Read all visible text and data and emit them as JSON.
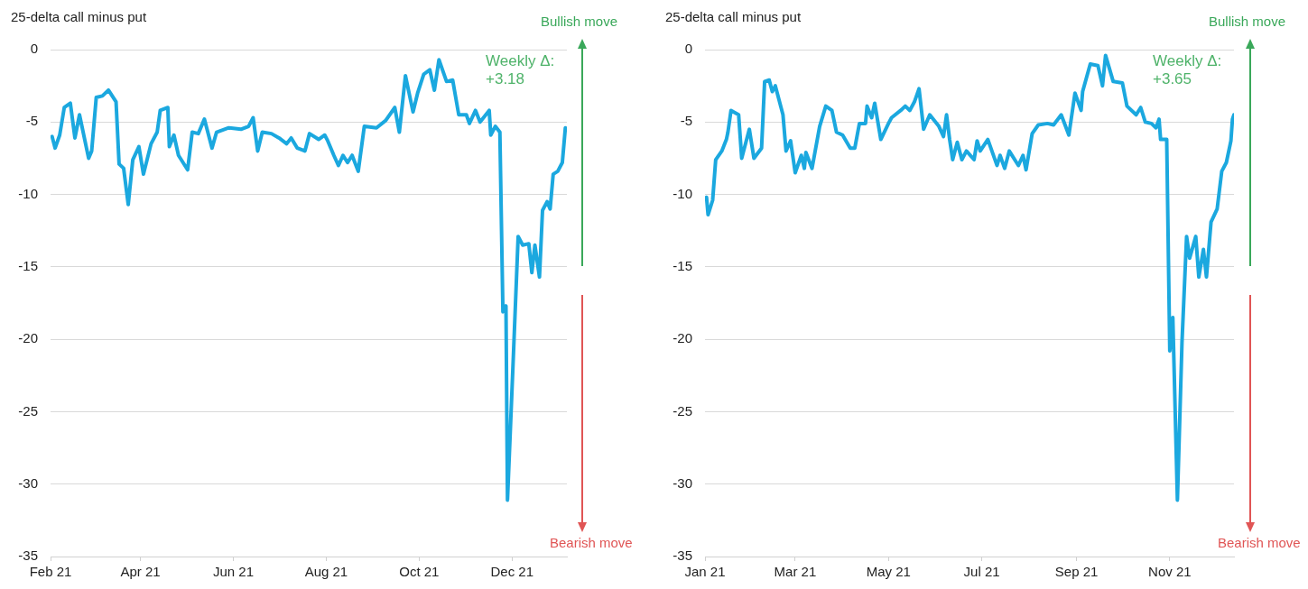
{
  "chart_data": [
    {
      "type": "line",
      "ylabel": "25-delta call minus put",
      "annotations": [
        "Bullish move",
        "Weekly Δ: +3.18",
        "Bearish move"
      ],
      "xlim": [
        "2021-02-01",
        "2022-01-06"
      ],
      "ylim": [
        -35,
        0
      ],
      "yticks": [
        -35,
        -30,
        -25,
        -20,
        -15,
        -10,
        -5,
        0
      ],
      "xticks": [
        {
          "value": "2021-02-01",
          "label": "Feb 21"
        },
        {
          "value": "2021-04-01",
          "label": "Apr 21"
        },
        {
          "value": "2021-06-01",
          "label": "Jun 21"
        },
        {
          "value": "2021-08-01",
          "label": "Aug 21"
        },
        {
          "value": "2021-10-01",
          "label": "Oct 21"
        },
        {
          "value": "2021-12-01",
          "label": "Dec 21"
        }
      ],
      "grid": "y",
      "marker": "none",
      "line_style": "solid",
      "series": [
        {
          "color": "#1ba8df",
          "x": [
            "2021-02-02",
            "2021-02-04",
            "2021-02-07",
            "2021-02-10",
            "2021-02-14",
            "2021-02-17",
            "2021-02-20",
            "2021-02-26",
            "2021-02-28",
            "2021-03-03",
            "2021-03-07",
            "2021-03-11",
            "2021-03-16",
            "2021-03-18",
            "2021-03-21",
            "2021-03-24",
            "2021-03-27",
            "2021-03-31",
            "2021-04-03",
            "2021-04-08",
            "2021-04-12",
            "2021-04-14",
            "2021-04-19",
            "2021-04-20",
            "2021-04-23",
            "2021-04-26",
            "2021-05-02",
            "2021-05-05",
            "2021-05-09",
            "2021-05-13",
            "2021-05-18",
            "2021-05-21",
            "2021-05-29",
            "2021-06-06",
            "2021-06-11",
            "2021-06-14",
            "2021-06-17",
            "2021-06-20",
            "2021-06-26",
            "2021-07-01",
            "2021-07-06",
            "2021-07-09",
            "2021-07-13",
            "2021-07-18",
            "2021-07-21",
            "2021-07-27",
            "2021-07-31",
            "2021-08-02",
            "2021-08-06",
            "2021-08-09",
            "2021-08-12",
            "2021-08-15",
            "2021-08-18",
            "2021-08-22",
            "2021-08-26",
            "2021-09-03",
            "2021-09-09",
            "2021-09-15",
            "2021-09-18",
            "2021-09-22",
            "2021-09-27",
            "2021-09-30",
            "2021-10-04",
            "2021-10-08",
            "2021-10-11",
            "2021-10-14",
            "2021-10-19",
            "2021-10-23",
            "2021-10-27",
            "2021-11-01",
            "2021-11-03",
            "2021-11-07",
            "2021-11-10",
            "2021-11-16",
            "2021-11-17",
            "2021-11-20",
            "2021-11-23",
            "2021-11-25",
            "2021-11-27",
            "2021-11-28",
            "2021-12-02",
            "2021-12-05",
            "2021-12-08",
            "2021-12-12",
            "2021-12-14",
            "2021-12-16",
            "2021-12-19",
            "2021-12-21",
            "2021-12-24",
            "2021-12-26",
            "2021-12-28",
            "2021-12-31",
            "2022-01-03",
            "2022-01-05",
            "2022-01-06"
          ],
          "values": [
            -6.0,
            -6.8,
            -5.9,
            -4.0,
            -3.7,
            -6.1,
            -4.5,
            -7.5,
            -7.0,
            -3.3,
            -3.2,
            -2.8,
            -3.6,
            -7.9,
            -8.2,
            -10.7,
            -7.6,
            -6.7,
            -8.6,
            -6.5,
            -5.7,
            -4.2,
            -4.0,
            -6.7,
            -5.9,
            -7.3,
            -8.3,
            -5.7,
            -5.8,
            -4.8,
            -6.8,
            -5.7,
            -5.4,
            -5.5,
            -5.3,
            -4.7,
            -7.0,
            -5.7,
            -5.8,
            -6.1,
            -6.5,
            -6.1,
            -6.8,
            -7.0,
            -5.8,
            -6.2,
            -5.9,
            -6.3,
            -7.3,
            -8.0,
            -7.3,
            -7.8,
            -7.3,
            -8.4,
            -5.3,
            -5.4,
            -4.9,
            -4.0,
            -5.7,
            -1.8,
            -4.3,
            -3.0,
            -1.7,
            -1.4,
            -2.8,
            -0.7,
            -2.2,
            -2.1,
            -4.5,
            -4.5,
            -5.1,
            -4.2,
            -5.0,
            -4.2,
            -5.9,
            -5.3,
            -5.7,
            -18.1,
            -17.7,
            -31.1,
            -20.8,
            -12.9,
            -13.5,
            -13.4,
            -15.4,
            -13.5,
            -15.7,
            -11.1,
            -10.5,
            -11.0,
            -8.6,
            -8.4,
            -7.8,
            -5.4,
            -5.5
          ]
        }
      ]
    },
    {
      "type": "line",
      "ylabel": "25-delta call minus put",
      "annotations": [
        "Bullish move",
        "Weekly Δ: +3.65",
        "Bearish move"
      ],
      "xlim": [
        "2021-01-01",
        "2021-12-13"
      ],
      "ylim": [
        -35,
        0
      ],
      "yticks": [
        -35,
        -30,
        -25,
        -20,
        -15,
        -10,
        -5,
        0
      ],
      "xticks": [
        {
          "value": "2021-01-01",
          "label": "Jan 21"
        },
        {
          "value": "2021-03-01",
          "label": "Mar 21"
        },
        {
          "value": "2021-05-01",
          "label": "May 21"
        },
        {
          "value": "2021-07-01",
          "label": "Jul 21"
        },
        {
          "value": "2021-09-01",
          "label": "Sep 21"
        },
        {
          "value": "2021-11-01",
          "label": "Nov 21"
        }
      ],
      "grid": "y",
      "marker": "none",
      "line_style": "solid",
      "series": [
        {
          "color": "#1ba8df",
          "x": [
            "2021-01-02",
            "2021-01-03",
            "2021-01-06",
            "2021-01-08",
            "2021-01-12",
            "2021-01-15",
            "2021-01-16",
            "2021-01-18",
            "2021-01-23",
            "2021-01-25",
            "2021-01-30",
            "2021-02-02",
            "2021-02-07",
            "2021-02-09",
            "2021-02-12",
            "2021-02-14",
            "2021-02-16",
            "2021-02-21",
            "2021-02-23",
            "2021-02-26",
            "2021-03-01",
            "2021-03-05",
            "2021-03-07",
            "2021-03-08",
            "2021-03-12",
            "2021-03-17",
            "2021-03-21",
            "2021-03-25",
            "2021-03-28",
            "2021-04-01",
            "2021-04-06",
            "2021-04-09",
            "2021-04-12",
            "2021-04-16",
            "2021-04-17",
            "2021-04-20",
            "2021-04-22",
            "2021-04-26",
            "2021-05-01",
            "2021-05-03",
            "2021-05-09",
            "2021-05-12",
            "2021-05-15",
            "2021-05-18",
            "2021-05-21",
            "2021-05-24",
            "2021-05-28",
            "2021-06-03",
            "2021-06-06",
            "2021-06-08",
            "2021-06-10",
            "2021-06-12",
            "2021-06-15",
            "2021-06-18",
            "2021-06-21",
            "2021-06-26",
            "2021-06-28",
            "2021-06-30",
            "2021-07-05",
            "2021-07-11",
            "2021-07-13",
            "2021-07-16",
            "2021-07-19",
            "2021-07-25",
            "2021-07-28",
            "2021-07-30",
            "2021-08-03",
            "2021-08-07",
            "2021-08-13",
            "2021-08-17",
            "2021-08-22",
            "2021-08-27",
            "2021-08-31",
            "2021-09-04",
            "2021-09-05",
            "2021-09-10",
            "2021-09-15",
            "2021-09-18",
            "2021-09-20",
            "2021-09-25",
            "2021-10-01",
            "2021-10-04",
            "2021-10-10",
            "2021-10-13",
            "2021-10-16",
            "2021-10-20",
            "2021-10-23",
            "2021-10-25",
            "2021-10-26",
            "2021-10-30",
            "2021-11-01",
            "2021-11-03",
            "2021-11-06",
            "2021-11-09",
            "2021-11-12",
            "2021-11-14",
            "2021-11-18",
            "2021-11-20",
            "2021-11-23",
            "2021-11-25",
            "2021-11-28",
            "2021-12-02",
            "2021-12-05",
            "2021-12-08",
            "2021-12-11",
            "2021-12-12",
            "2021-12-13"
          ],
          "values": [
            -10.2,
            -11.4,
            -10.4,
            -7.6,
            -7.0,
            -6.2,
            -5.7,
            -4.2,
            -4.5,
            -7.5,
            -5.5,
            -7.5,
            -6.8,
            -2.2,
            -2.1,
            -2.9,
            -2.5,
            -4.5,
            -7.0,
            -6.3,
            -8.5,
            -7.3,
            -8.2,
            -7.1,
            -8.2,
            -5.3,
            -3.9,
            -4.2,
            -5.7,
            -5.9,
            -6.8,
            -6.8,
            -5.1,
            -5.1,
            -3.9,
            -4.7,
            -3.7,
            -6.2,
            -5.1,
            -4.7,
            -4.2,
            -3.9,
            -4.2,
            -3.6,
            -2.7,
            -5.5,
            -4.5,
            -5.3,
            -6.0,
            -4.5,
            -6.2,
            -7.6,
            -6.4,
            -7.6,
            -7.0,
            -7.6,
            -6.3,
            -7.0,
            -6.2,
            -8.0,
            -7.3,
            -8.2,
            -7.0,
            -8.0,
            -7.3,
            -8.3,
            -5.8,
            -5.2,
            -5.1,
            -5.2,
            -4.5,
            -5.9,
            -3.0,
            -4.2,
            -2.9,
            -1.0,
            -1.1,
            -2.5,
            -0.4,
            -2.2,
            -2.3,
            -3.9,
            -4.5,
            -4.0,
            -5.0,
            -5.1,
            -5.4,
            -4.8,
            -6.2,
            -6.2,
            -20.8,
            -18.5,
            -31.1,
            -20.2,
            -12.9,
            -14.4,
            -12.9,
            -15.7,
            -13.8,
            -15.7,
            -11.9,
            -11.0,
            -8.4,
            -7.8,
            -6.3,
            -4.8,
            -4.5
          ]
        }
      ]
    }
  ]
}
